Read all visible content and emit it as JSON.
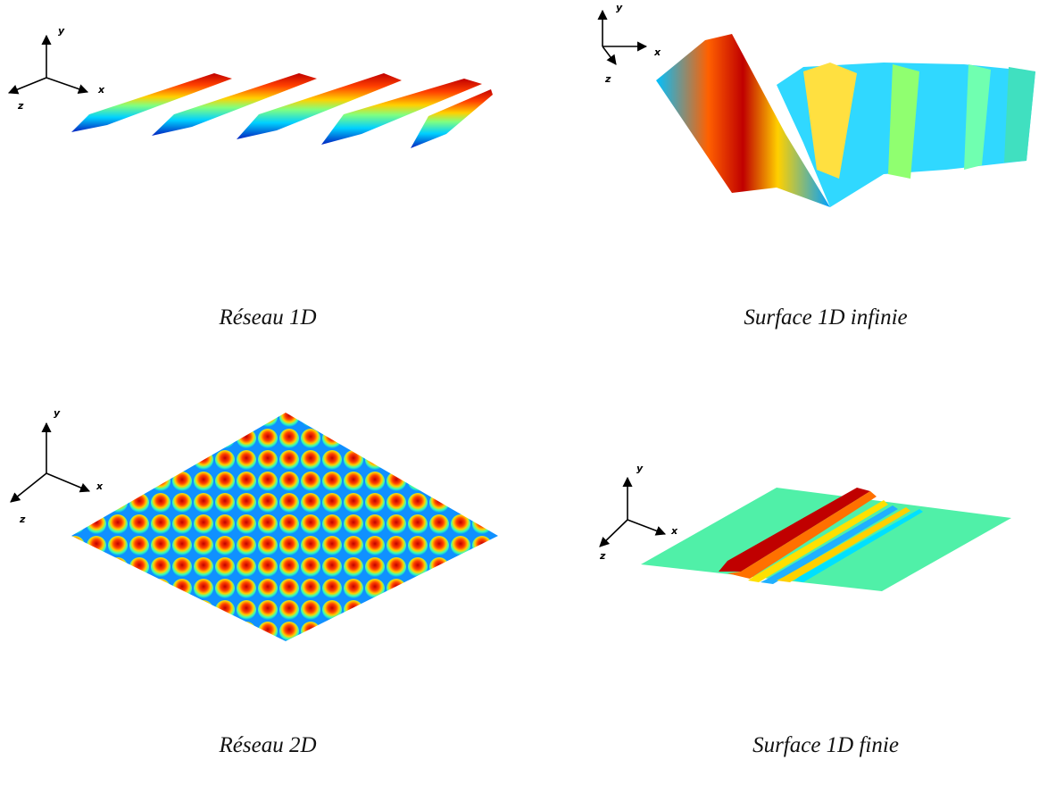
{
  "panels": [
    {
      "caption": "Réseau 1D",
      "axes": {
        "x": "x",
        "y": "y",
        "z": "z"
      }
    },
    {
      "caption": "Surface 1D infinie",
      "axes": {
        "x": "x",
        "y": "y",
        "z": "z"
      }
    },
    {
      "caption": "Réseau 2D",
      "axes": {
        "x": "x",
        "y": "y",
        "z": "z"
      }
    },
    {
      "caption": "Surface 1D finie",
      "axes": {
        "x": "x",
        "y": "y",
        "z": "z"
      }
    }
  ]
}
